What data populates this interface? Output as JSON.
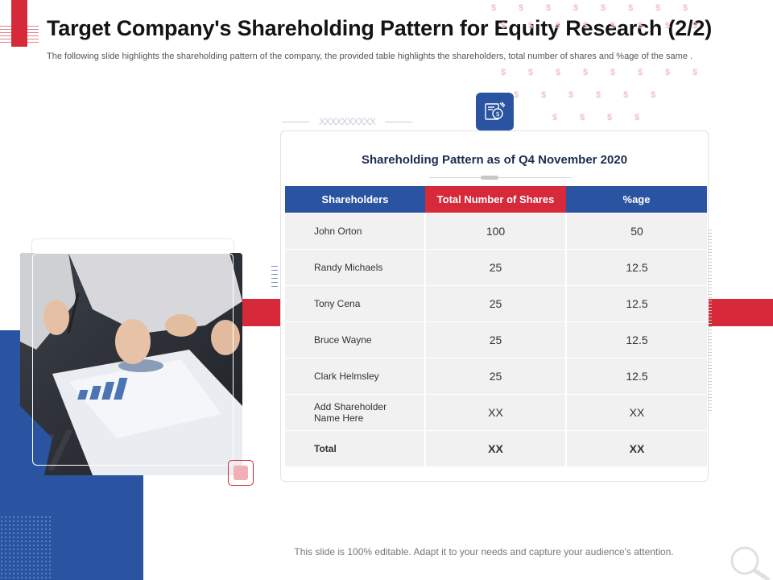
{
  "header": {
    "title": "Target Company's Shareholding Pattern for Equity Research (2/2)",
    "subtitle": "The following slide highlights the shareholding pattern of the company, the provided table highlights the shareholders, total number of shares and %age of the same ."
  },
  "decor": {
    "placeholder_text": "XXXXXXXXXX",
    "dollar_symbol": "$",
    "icon": "document-dollar-icon",
    "accent_blue": "#2a54a1",
    "accent_red": "#d6293a"
  },
  "card": {
    "title": "Shareholding Pattern as of Q4 November 2020",
    "columns": [
      "Shareholders",
      "Total Number of Shares",
      "%age"
    ],
    "rows": [
      {
        "name": "John Orton",
        "shares": "100",
        "pct": "50"
      },
      {
        "name": "Randy Michaels",
        "shares": "25",
        "pct": "12.5"
      },
      {
        "name": "Tony Cena",
        "shares": "25",
        "pct": "12.5"
      },
      {
        "name": "Bruce Wayne",
        "shares": "25",
        "pct": "12.5"
      },
      {
        "name": "Clark Helmsley",
        "shares": "25",
        "pct": "12.5"
      },
      {
        "name": "Add Shareholder Name Here",
        "shares": "XX",
        "pct": "XX"
      },
      {
        "name": "Total",
        "shares": "XX",
        "pct": "XX"
      }
    ]
  },
  "footer": {
    "text": "This slide is 100% editable. Adapt it to your needs and capture your audience's attention."
  }
}
